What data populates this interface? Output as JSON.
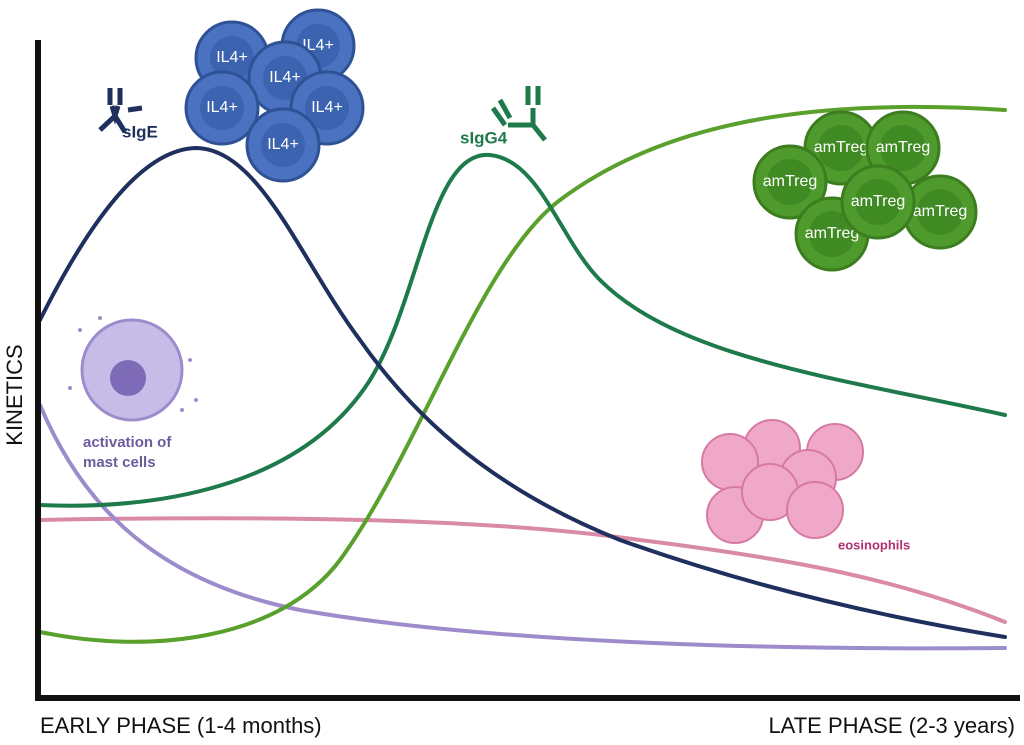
{
  "axis": {
    "y_label": "KINETICS",
    "x_start": "EARLY PHASE (1-4 months)",
    "x_end": "LATE PHASE (2-3 years)"
  },
  "curves": [
    {
      "label": "sIgE"
    },
    {
      "label": "sIgG4"
    },
    {
      "label_lines": [
        "activation of",
        "mast cells"
      ]
    },
    {
      "label": "eosinophils"
    }
  ],
  "cells": {
    "il4": [
      "IL4+",
      "IL4+",
      "IL4+",
      "IL4+",
      "IL4+",
      "IL4+"
    ],
    "amtreg": [
      "amTreg",
      "amTreg",
      "amTreg",
      "amTreg",
      "amTreg",
      "amTreg"
    ]
  }
}
